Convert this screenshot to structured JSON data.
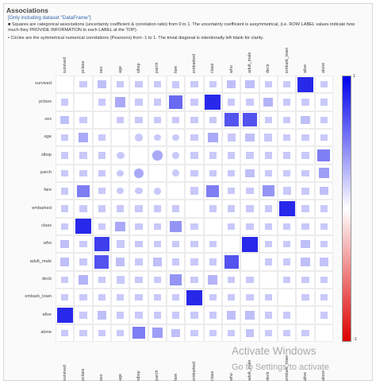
{
  "header": {
    "title": "Associations",
    "subtitle": "[Only including dataset \"DataFrame\"]",
    "desc1": "■ Squares are categorical associations (uncertainty coefficient & correlation ratio) from 0 to 1. The uncertainty coefficient is assymmetrical, (i.e. ROW LABEL values indicate how much they PROVIDE INFORMATION to each LABEL at the TOP).",
    "desc2": "• Circles are the symmetrical numerical correlations (Pearsons) from -1 to 1. The trivial diagonal is intentionally left blank for clarity."
  },
  "colorbar": {
    "top_label": "1",
    "bottom_label": "-1",
    "top_color": "#0000ee",
    "mid_color": "#ffffff",
    "bottom_color": "#dd0000"
  },
  "watermark": {
    "line1": "Activate Windows",
    "line2": "Go to Settings to activate"
  },
  "chart_data": {
    "type": "heatmap",
    "labels": [
      "survived",
      "pclass",
      "sex",
      "age",
      "sibsp",
      "parch",
      "fare",
      "embarked",
      "class",
      "who",
      "adult_male",
      "deck",
      "embark_town",
      "alive",
      "alone"
    ],
    "marker_types": [
      "square",
      "square",
      "square",
      "circle",
      "circle",
      "circle",
      "circle",
      "square",
      "square",
      "square",
      "square",
      "square",
      "square",
      "square",
      "square"
    ],
    "values": [
      [
        null,
        0.1,
        0.3,
        0.06,
        0.03,
        0.06,
        0.22,
        0.03,
        0.1,
        0.3,
        0.3,
        0.2,
        0.03,
        1.0,
        0.1
      ],
      [
        0.1,
        null,
        0.02,
        0.4,
        0.08,
        0.02,
        0.7,
        0.05,
        1.0,
        0.04,
        0.05,
        0.35,
        0.05,
        0.1,
        0.03
      ],
      [
        0.3,
        0.02,
        null,
        0.08,
        0.1,
        0.2,
        0.18,
        0.02,
        0.02,
        0.8,
        0.8,
        0.1,
        0.02,
        0.3,
        0.2
      ],
      [
        0.06,
        0.4,
        0.08,
        null,
        0.25,
        0.2,
        0.1,
        0.04,
        0.4,
        0.25,
        0.3,
        0.25,
        0.04,
        0.08,
        0.2
      ],
      [
        0.03,
        0.08,
        0.1,
        0.25,
        null,
        0.4,
        0.16,
        0.06,
        0.08,
        0.06,
        0.12,
        0.05,
        0.06,
        0.04,
        0.6
      ],
      [
        0.06,
        0.02,
        0.2,
        0.2,
        0.4,
        null,
        0.22,
        0.01,
        0.02,
        0.1,
        0.3,
        0.06,
        0.01,
        0.05,
        0.45
      ],
      [
        0.22,
        0.6,
        0.2,
        0.1,
        0.16,
        0.22,
        null,
        0.25,
        0.6,
        0.1,
        0.18,
        0.5,
        0.25,
        0.22,
        0.3
      ],
      [
        0.05,
        0.06,
        0.02,
        0.04,
        0.06,
        0.01,
        0.1,
        null,
        0.05,
        0.02,
        0.02,
        0.06,
        1.0,
        0.03,
        0.02
      ],
      [
        0.1,
        1.0,
        0.02,
        0.4,
        0.08,
        0.02,
        0.5,
        0.05,
        null,
        0.04,
        0.05,
        0.2,
        0.05,
        0.1,
        0.03
      ],
      [
        0.3,
        0.04,
        0.9,
        0.25,
        0.06,
        0.1,
        0.1,
        0.02,
        0.04,
        null,
        1.0,
        0.06,
        0.02,
        0.3,
        0.18
      ],
      [
        0.3,
        0.05,
        0.8,
        0.3,
        0.12,
        0.3,
        0.18,
        0.02,
        0.05,
        0.8,
        null,
        0.05,
        0.02,
        0.3,
        0.28
      ],
      [
        0.2,
        0.35,
        0.1,
        0.25,
        0.05,
        0.06,
        0.5,
        0.06,
        0.35,
        0.06,
        0.05,
        null,
        0.06,
        0.2,
        0.08
      ],
      [
        0.03,
        0.05,
        0.02,
        0.04,
        0.06,
        0.01,
        0.1,
        1.0,
        0.05,
        0.02,
        0.02,
        0.06,
        null,
        0.03,
        0.02
      ],
      [
        1.0,
        0.1,
        0.3,
        0.06,
        0.03,
        0.06,
        0.22,
        0.03,
        0.1,
        0.3,
        0.3,
        0.2,
        0.03,
        null,
        0.1
      ],
      [
        0.1,
        0.03,
        0.2,
        0.2,
        0.6,
        0.45,
        0.3,
        0.02,
        0.03,
        0.18,
        0.28,
        0.08,
        0.02,
        0.1,
        null
      ]
    ],
    "scale": [
      -1,
      1
    ],
    "grid": true,
    "legend": "colorbar right"
  }
}
